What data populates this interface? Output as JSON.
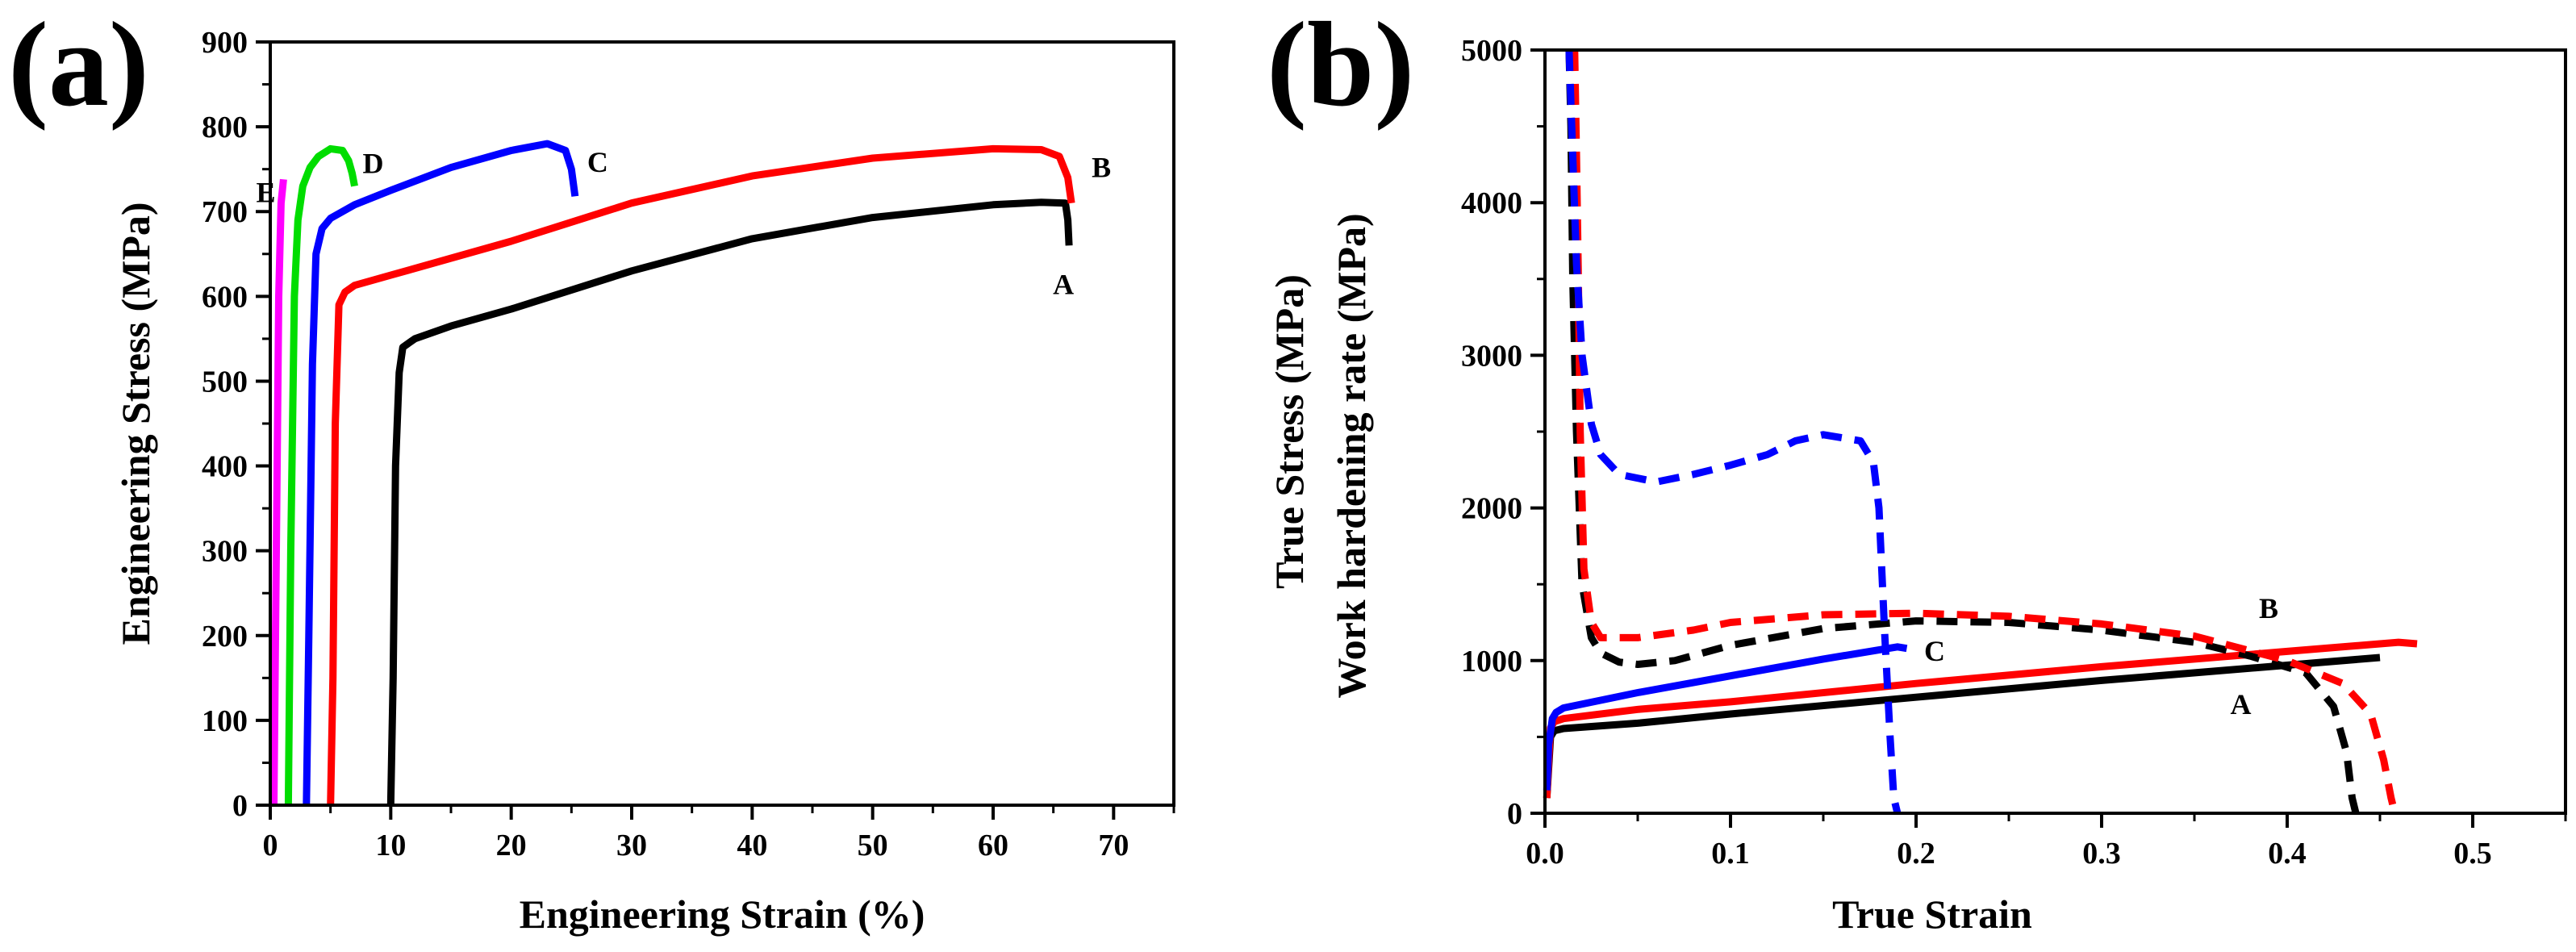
{
  "panels": {
    "a": {
      "label": "(a)",
      "xlabel": "Engineering Strain (%)",
      "ylabel": "Engineering Stress (MPa)"
    },
    "b": {
      "label": "(b)",
      "xlabel": "True Strain",
      "ylabel_line1": "True Stress (MPa)",
      "ylabel_line2": "Work hardening rate (MPa)"
    }
  },
  "chart_data": [
    {
      "type": "line",
      "panel": "(a)",
      "title": "",
      "xlabel": "Engineering Strain (%)",
      "ylabel": "Engineering Stress (MPa)",
      "xlim": [
        0,
        75
      ],
      "ylim": [
        0,
        900
      ],
      "xticks": [
        "0",
        "10",
        "20",
        "30",
        "40",
        "50",
        "60",
        "70"
      ],
      "yticks": [
        "0",
        "100",
        "200",
        "300",
        "400",
        "500",
        "600",
        "700",
        "800",
        "900"
      ],
      "grid": false,
      "series": [
        {
          "name": "A",
          "color": "#000000",
          "style": "solid",
          "x": [
            10,
            10.2,
            10.4,
            10.7,
            11,
            12,
            15,
            20,
            30,
            40,
            50,
            60,
            64,
            66,
            66.2,
            66.3
          ],
          "y": [
            0,
            150,
            400,
            510,
            540,
            550,
            565,
            585,
            630,
            668,
            693,
            708,
            711,
            710,
            690,
            660
          ]
        },
        {
          "name": "B",
          "color": "#ff0000",
          "style": "solid",
          "x": [
            5,
            5.2,
            5.4,
            5.7,
            6.2,
            7,
            10,
            20,
            30,
            40,
            50,
            60,
            64,
            65.5,
            66.2,
            66.5
          ],
          "y": [
            0,
            150,
            450,
            590,
            605,
            613,
            625,
            665,
            710,
            742,
            763,
            774,
            773,
            765,
            740,
            710
          ]
        },
        {
          "name": "C",
          "color": "#0000ff",
          "style": "solid",
          "x": [
            3,
            3.2,
            3.5,
            3.8,
            4.3,
            5,
            7,
            10,
            15,
            20,
            23,
            24.5,
            25,
            25.3
          ],
          "y": [
            0,
            200,
            520,
            650,
            680,
            692,
            708,
            725,
            752,
            772,
            780,
            772,
            750,
            718
          ]
        },
        {
          "name": "D",
          "color": "#00dd00",
          "style": "solid",
          "x": [
            1.5,
            1.7,
            2,
            2.3,
            2.7,
            3.3,
            4,
            5,
            6,
            6.5,
            6.8,
            7
          ],
          "y": [
            0,
            300,
            600,
            690,
            730,
            752,
            765,
            774,
            772,
            760,
            745,
            730
          ]
        },
        {
          "name": "E",
          "color": "#ff00ff",
          "style": "solid",
          "x": [
            0.3,
            0.5,
            0.7,
            0.9,
            1.1
          ],
          "y": [
            0,
            300,
            600,
            710,
            738
          ]
        }
      ],
      "annotations": [
        "A",
        "B",
        "C",
        "D",
        "E"
      ]
    },
    {
      "type": "line",
      "panel": "(b)",
      "title": "",
      "xlabel": "True Strain",
      "ylabel": [
        "True Stress (MPa)",
        "Work hardening rate (MPa)"
      ],
      "xlim": [
        0,
        0.55
      ],
      "ylim": [
        0,
        5000
      ],
      "xticks": [
        "0.0",
        "0.1",
        "0.2",
        "0.3",
        "0.4",
        "0.5"
      ],
      "yticks": [
        "0",
        "1000",
        "2000",
        "3000",
        "4000",
        "5000"
      ],
      "grid": false,
      "series": [
        {
          "name": "A",
          "kind": "true stress",
          "color": "#000000",
          "style": "solid",
          "x": [
            0.001,
            0.002,
            0.003,
            0.005,
            0.01,
            0.05,
            0.1,
            0.2,
            0.3,
            0.4,
            0.44,
            0.45
          ],
          "y": [
            100,
            300,
            500,
            540,
            555,
            590,
            650,
            760,
            870,
            970,
            1010,
            1020
          ]
        },
        {
          "name": "B",
          "kind": "true stress",
          "color": "#ff0000",
          "style": "solid",
          "x": [
            0.001,
            0.002,
            0.003,
            0.005,
            0.01,
            0.05,
            0.1,
            0.2,
            0.3,
            0.4,
            0.45,
            0.46,
            0.47
          ],
          "y": [
            100,
            350,
            560,
            600,
            620,
            680,
            730,
            850,
            960,
            1060,
            1110,
            1120,
            1110
          ]
        },
        {
          "name": "C",
          "kind": "true stress",
          "color": "#0000ff",
          "style": "solid",
          "x": [
            0.001,
            0.002,
            0.004,
            0.006,
            0.01,
            0.03,
            0.05,
            0.1,
            0.15,
            0.18,
            0.19,
            0.195
          ],
          "y": [
            150,
            450,
            620,
            660,
            690,
            740,
            790,
            900,
            1010,
            1070,
            1090,
            1080
          ]
        },
        {
          "name": "A",
          "kind": "work hardening rate",
          "color": "#000000",
          "style": "dashed",
          "x": [
            0.013,
            0.014,
            0.015,
            0.017,
            0.02,
            0.025,
            0.03,
            0.04,
            0.05,
            0.07,
            0.1,
            0.15,
            0.2,
            0.25,
            0.3,
            0.35,
            0.38,
            0.41,
            0.425,
            0.432,
            0.435,
            0.437
          ],
          "y": [
            5000,
            4500,
            3500,
            2500,
            1500,
            1150,
            1050,
            990,
            975,
            1000,
            1100,
            1210,
            1260,
            1250,
            1200,
            1120,
            1030,
            920,
            700,
            400,
            100,
            0
          ]
        },
        {
          "name": "B",
          "kind": "work hardening rate",
          "color": "#ff0000",
          "style": "dashed",
          "x": [
            0.016,
            0.017,
            0.018,
            0.019,
            0.021,
            0.025,
            0.03,
            0.05,
            0.08,
            0.1,
            0.15,
            0.2,
            0.25,
            0.3,
            0.35,
            0.4,
            0.43,
            0.445,
            0.452,
            0.456,
            0.458
          ],
          "y": [
            5000,
            4300,
            3500,
            2500,
            1600,
            1250,
            1150,
            1150,
            1200,
            1250,
            1300,
            1310,
            1290,
            1240,
            1160,
            1000,
            850,
            650,
            350,
            100,
            0
          ]
        },
        {
          "name": "C",
          "kind": "work hardening rate",
          "color": "#0000ff",
          "style": "dashed",
          "x": [
            0.013,
            0.015,
            0.017,
            0.02,
            0.025,
            0.03,
            0.04,
            0.06,
            0.08,
            0.1,
            0.12,
            0.135,
            0.15,
            0.16,
            0.17,
            0.177,
            0.18,
            0.183,
            0.186,
            0.188,
            0.19
          ],
          "y": [
            5000,
            4300,
            3600,
            3000,
            2550,
            2350,
            2220,
            2170,
            2220,
            2280,
            2350,
            2440,
            2480,
            2460,
            2440,
            2300,
            2000,
            1200,
            500,
            100,
            0
          ]
        }
      ],
      "annotations": [
        "A",
        "B",
        "C"
      ]
    }
  ]
}
